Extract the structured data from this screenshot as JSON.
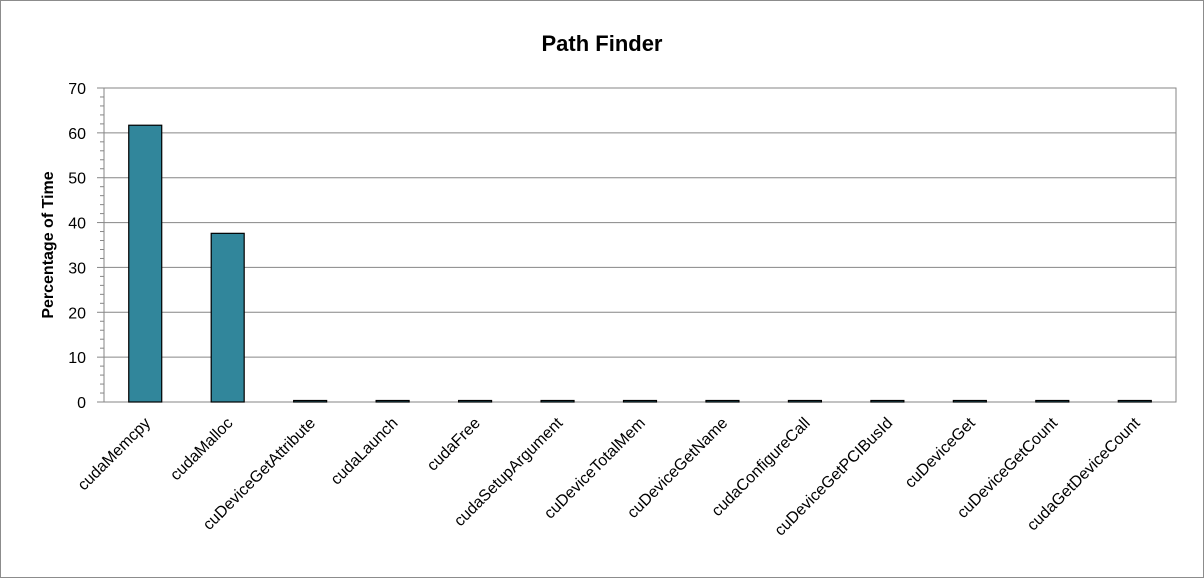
{
  "chart_data": {
    "type": "bar",
    "title": "Path Finder",
    "xlabel": "",
    "ylabel": "Percentage of Time",
    "ylim": [
      0,
      70
    ],
    "yticks": [
      0,
      10,
      20,
      30,
      40,
      50,
      60,
      70
    ],
    "grid": true,
    "legend": "none",
    "bar_color": "#31869b",
    "categories": [
      "cudaMemcpy",
      "cudaMalloc",
      "cuDeviceGetAttribute",
      "cudaLaunch",
      "cudaFree",
      "cudaSetupArgument",
      "cuDeviceTotalMem",
      "cuDeviceGetName",
      "cudaConfigureCall",
      "cuDeviceGetPCIBusId",
      "cuDeviceGet",
      "cuDeviceGetCount",
      "cudaGetDeviceCount"
    ],
    "values": [
      61.7,
      37.6,
      0.3,
      0.2,
      0.1,
      0.05,
      0.05,
      0.03,
      0.02,
      0.02,
      0.01,
      0.01,
      0.01
    ]
  }
}
